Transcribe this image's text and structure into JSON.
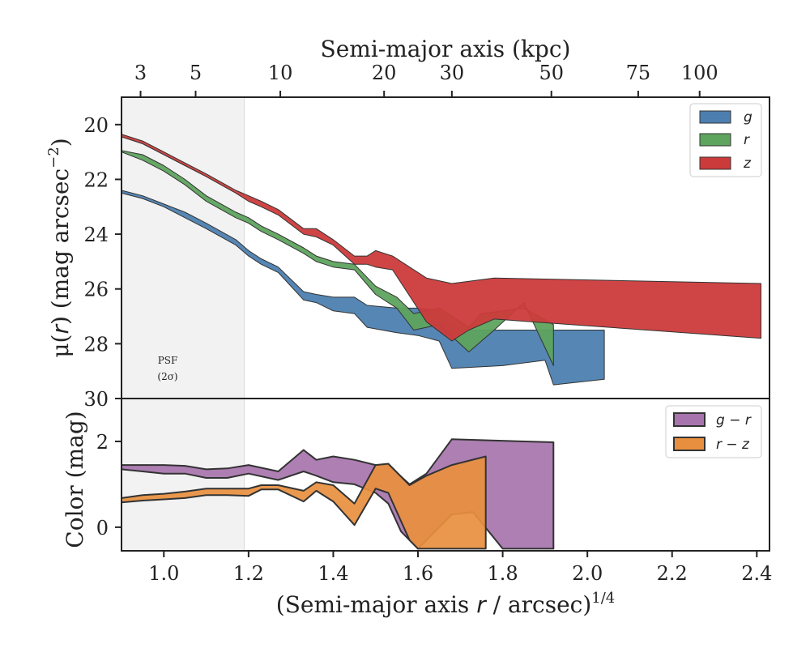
{
  "chart_data": [
    {
      "type": "area",
      "panel": "surface-brightness",
      "x_top_label": "Semi-major axis (kpc)",
      "x_top_ticks": [
        {
          "label": "3",
          "x": 0.945
        },
        {
          "label": "5",
          "x": 1.075
        },
        {
          "label": "10",
          "x": 1.275
        },
        {
          "label": "20",
          "x": 1.52
        },
        {
          "label": "30",
          "x": 1.68
        },
        {
          "label": "50",
          "x": 1.915
        },
        {
          "label": "75",
          "x": 2.12
        },
        {
          "label": "100",
          "x": 2.265
        }
      ],
      "ylabel_parts": [
        "μ(",
        "r",
        ") (mag arcsec",
        "−2",
        ")"
      ],
      "yrange": [
        30,
        19
      ],
      "yticks": [
        "20",
        "22",
        "24",
        "26",
        "28",
        "30"
      ],
      "annotation_lines": [
        "PSF",
        "(2σ)"
      ],
      "psf_x": 1.19,
      "legend_position": "top-right",
      "series": [
        {
          "name": "g",
          "color": "#4c7fb0",
          "upper": [
            [
              0.9,
              22.4
            ],
            [
              0.95,
              22.6
            ],
            [
              1.0,
              22.9
            ],
            [
              1.05,
              23.2
            ],
            [
              1.1,
              23.6
            ],
            [
              1.17,
              24.2
            ],
            [
              1.2,
              24.6
            ],
            [
              1.23,
              24.9
            ],
            [
              1.27,
              25.2
            ],
            [
              1.33,
              26.1
            ],
            [
              1.36,
              26.2
            ],
            [
              1.4,
              26.3
            ],
            [
              1.45,
              26.3
            ],
            [
              1.48,
              26.6
            ],
            [
              1.55,
              26.7
            ],
            [
              1.6,
              26.7
            ],
            [
              1.65,
              26.8
            ],
            [
              1.7,
              27.5
            ],
            [
              1.77,
              27.5
            ],
            [
              2.04,
              27.5
            ]
          ],
          "lower": [
            [
              0.9,
              22.5
            ],
            [
              0.95,
              22.7
            ],
            [
              1.0,
              23.0
            ],
            [
              1.05,
              23.4
            ],
            [
              1.1,
              23.8
            ],
            [
              1.17,
              24.4
            ],
            [
              1.2,
              24.8
            ],
            [
              1.23,
              25.1
            ],
            [
              1.27,
              25.4
            ],
            [
              1.33,
              26.4
            ],
            [
              1.36,
              26.5
            ],
            [
              1.4,
              26.8
            ],
            [
              1.45,
              26.9
            ],
            [
              1.48,
              27.4
            ],
            [
              1.55,
              27.6
            ],
            [
              1.6,
              27.7
            ],
            [
              1.65,
              27.9
            ],
            [
              1.68,
              28.9
            ],
            [
              1.8,
              28.8
            ],
            [
              1.9,
              28.6
            ],
            [
              1.92,
              29.5
            ],
            [
              2.04,
              29.3
            ]
          ]
        },
        {
          "name": "r",
          "color": "#5ea35e",
          "upper": [
            [
              0.9,
              20.95
            ],
            [
              0.95,
              21.1
            ],
            [
              1.0,
              21.5
            ],
            [
              1.05,
              22.0
            ],
            [
              1.1,
              22.6
            ],
            [
              1.17,
              23.2
            ],
            [
              1.2,
              23.4
            ],
            [
              1.23,
              23.7
            ],
            [
              1.27,
              24.0
            ],
            [
              1.33,
              24.5
            ],
            [
              1.36,
              24.8
            ],
            [
              1.4,
              25.0
            ],
            [
              1.45,
              25.1
            ],
            [
              1.5,
              25.9
            ],
            [
              1.55,
              26.3
            ],
            [
              1.59,
              26.9
            ],
            [
              1.65,
              26.7
            ],
            [
              1.72,
              27.4
            ],
            [
              1.75,
              26.9
            ],
            [
              1.85,
              26.7
            ],
            [
              1.92,
              27.3
            ]
          ],
          "lower": [
            [
              0.9,
              21.0
            ],
            [
              0.95,
              21.3
            ],
            [
              1.0,
              21.7
            ],
            [
              1.05,
              22.2
            ],
            [
              1.1,
              22.8
            ],
            [
              1.17,
              23.4
            ],
            [
              1.2,
              23.6
            ],
            [
              1.23,
              23.9
            ],
            [
              1.27,
              24.2
            ],
            [
              1.33,
              24.7
            ],
            [
              1.36,
              25.0
            ],
            [
              1.4,
              25.2
            ],
            [
              1.45,
              25.3
            ],
            [
              1.5,
              26.2
            ],
            [
              1.55,
              26.7
            ],
            [
              1.59,
              27.5
            ],
            [
              1.65,
              27.3
            ],
            [
              1.72,
              28.3
            ],
            [
              1.78,
              27.5
            ],
            [
              1.85,
              26.5
            ],
            [
              1.92,
              28.8
            ]
          ]
        },
        {
          "name": "z",
          "color": "#cc3b3b",
          "upper": [
            [
              0.9,
              20.35
            ],
            [
              0.95,
              20.6
            ],
            [
              1.0,
              21.0
            ],
            [
              1.05,
              21.4
            ],
            [
              1.1,
              21.8
            ],
            [
              1.17,
              22.4
            ],
            [
              1.2,
              22.6
            ],
            [
              1.23,
              22.8
            ],
            [
              1.27,
              23.1
            ],
            [
              1.33,
              23.8
            ],
            [
              1.36,
              23.8
            ],
            [
              1.4,
              24.2
            ],
            [
              1.45,
              24.8
            ],
            [
              1.48,
              24.8
            ],
            [
              1.5,
              24.6
            ],
            [
              1.54,
              24.8
            ],
            [
              1.62,
              25.6
            ],
            [
              1.68,
              25.8
            ],
            [
              1.78,
              25.6
            ],
            [
              2.41,
              25.8
            ]
          ],
          "lower": [
            [
              0.9,
              20.45
            ],
            [
              0.95,
              20.7
            ],
            [
              1.0,
              21.1
            ],
            [
              1.05,
              21.5
            ],
            [
              1.1,
              21.9
            ],
            [
              1.17,
              22.5
            ],
            [
              1.2,
              22.8
            ],
            [
              1.23,
              23.0
            ],
            [
              1.27,
              23.3
            ],
            [
              1.33,
              24.0
            ],
            [
              1.36,
              24.1
            ],
            [
              1.4,
              24.4
            ],
            [
              1.45,
              25.1
            ],
            [
              1.48,
              25.1
            ],
            [
              1.5,
              25.2
            ],
            [
              1.54,
              25.3
            ],
            [
              1.62,
              27.2
            ],
            [
              1.68,
              27.9
            ],
            [
              1.72,
              27.5
            ],
            [
              1.78,
              27.1
            ],
            [
              2.41,
              27.8
            ]
          ]
        }
      ]
    },
    {
      "type": "area",
      "panel": "color",
      "xlabel_parts": [
        "(Semi-major axis ",
        "r",
        " / arcsec)",
        "1/4"
      ],
      "ylabel": "Color (mag)",
      "xrange": [
        0.9,
        2.43
      ],
      "yrange": [
        -0.55,
        3.0
      ],
      "xticks": [
        "1.0",
        "1.2",
        "1.4",
        "1.6",
        "1.8",
        "2.0",
        "2.2",
        "2.4"
      ],
      "yticks": [
        "0",
        "2"
      ],
      "legend_position": "top-right",
      "series": [
        {
          "name": "g − r",
          "color": "#a774ad",
          "upper": [
            [
              0.9,
              1.45
            ],
            [
              0.95,
              1.45
            ],
            [
              1.0,
              1.45
            ],
            [
              1.05,
              1.43
            ],
            [
              1.1,
              1.35
            ],
            [
              1.15,
              1.37
            ],
            [
              1.2,
              1.45
            ],
            [
              1.27,
              1.3
            ],
            [
              1.33,
              1.8
            ],
            [
              1.36,
              1.57
            ],
            [
              1.4,
              1.65
            ],
            [
              1.45,
              1.57
            ],
            [
              1.5,
              1.45
            ],
            [
              1.53,
              1.45
            ],
            [
              1.58,
              1.0
            ],
            [
              1.62,
              1.25
            ],
            [
              1.68,
              2.05
            ],
            [
              1.92,
              1.98
            ]
          ],
          "lower": [
            [
              0.9,
              1.35
            ],
            [
              0.95,
              1.3
            ],
            [
              1.0,
              1.25
            ],
            [
              1.05,
              1.25
            ],
            [
              1.1,
              1.15
            ],
            [
              1.15,
              1.15
            ],
            [
              1.2,
              1.25
            ],
            [
              1.27,
              1.1
            ],
            [
              1.33,
              1.3
            ],
            [
              1.36,
              1.2
            ],
            [
              1.4,
              1.05
            ],
            [
              1.45,
              1.0
            ],
            [
              1.5,
              0.8
            ],
            [
              1.53,
              0.55
            ],
            [
              1.56,
              -0.1
            ],
            [
              1.6,
              -0.5
            ],
            [
              1.68,
              0.3
            ],
            [
              1.73,
              0.35
            ],
            [
              1.8,
              -0.5
            ],
            [
              1.92,
              -0.5
            ]
          ]
        },
        {
          "name": "r − z",
          "color": "#e88f3f",
          "upper": [
            [
              0.9,
              0.68
            ],
            [
              0.95,
              0.75
            ],
            [
              1.0,
              0.78
            ],
            [
              1.05,
              0.83
            ],
            [
              1.1,
              0.9
            ],
            [
              1.15,
              0.9
            ],
            [
              1.2,
              0.9
            ],
            [
              1.23,
              0.98
            ],
            [
              1.27,
              0.98
            ],
            [
              1.33,
              0.85
            ],
            [
              1.36,
              1.05
            ],
            [
              1.4,
              0.98
            ],
            [
              1.45,
              0.55
            ],
            [
              1.5,
              1.45
            ],
            [
              1.53,
              1.48
            ],
            [
              1.58,
              0.98
            ],
            [
              1.62,
              1.2
            ],
            [
              1.68,
              1.45
            ],
            [
              1.76,
              1.65
            ]
          ],
          "lower": [
            [
              0.9,
              0.58
            ],
            [
              0.95,
              0.62
            ],
            [
              1.0,
              0.65
            ],
            [
              1.05,
              0.68
            ],
            [
              1.1,
              0.75
            ],
            [
              1.15,
              0.75
            ],
            [
              1.2,
              0.73
            ],
            [
              1.23,
              0.88
            ],
            [
              1.27,
              0.88
            ],
            [
              1.33,
              0.6
            ],
            [
              1.36,
              0.85
            ],
            [
              1.4,
              0.6
            ],
            [
              1.45,
              0.05
            ],
            [
              1.5,
              0.9
            ],
            [
              1.53,
              0.8
            ],
            [
              1.58,
              -0.3
            ],
            [
              1.6,
              -0.5
            ],
            [
              1.65,
              -0.5
            ],
            [
              1.7,
              -0.5
            ],
            [
              1.76,
              -0.5
            ]
          ]
        }
      ]
    }
  ]
}
